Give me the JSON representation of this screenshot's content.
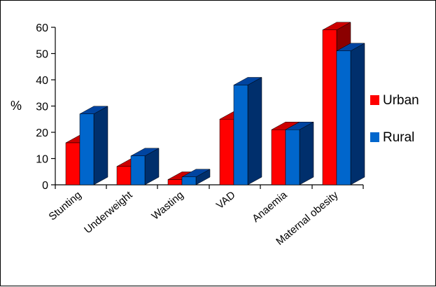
{
  "chart_data": {
    "type": "bar",
    "style": "3d-clustered",
    "categories": [
      "Stunting",
      "Underweight",
      "Wasting",
      "VAD",
      "Anaemia",
      "Maternal obesity"
    ],
    "series": [
      {
        "name": "Urban",
        "values": [
          16,
          7,
          2,
          25,
          21,
          59
        ]
      },
      {
        "name": "Rural",
        "values": [
          27,
          11,
          3,
          38,
          21,
          51
        ]
      }
    ],
    "ylabel": "%",
    "xlabel": "",
    "ylim": [
      0,
      60
    ],
    "yticks": [
      0,
      10,
      20,
      30,
      40,
      50,
      60
    ],
    "grid": false,
    "legend_position": "right",
    "colors": {
      "Urban": {
        "front": "#ff0000",
        "top": "#cc0000",
        "side": "#8b0000"
      },
      "Rural": {
        "front": "#0066cc",
        "top": "#0044a0",
        "side": "#002f6c"
      }
    }
  }
}
